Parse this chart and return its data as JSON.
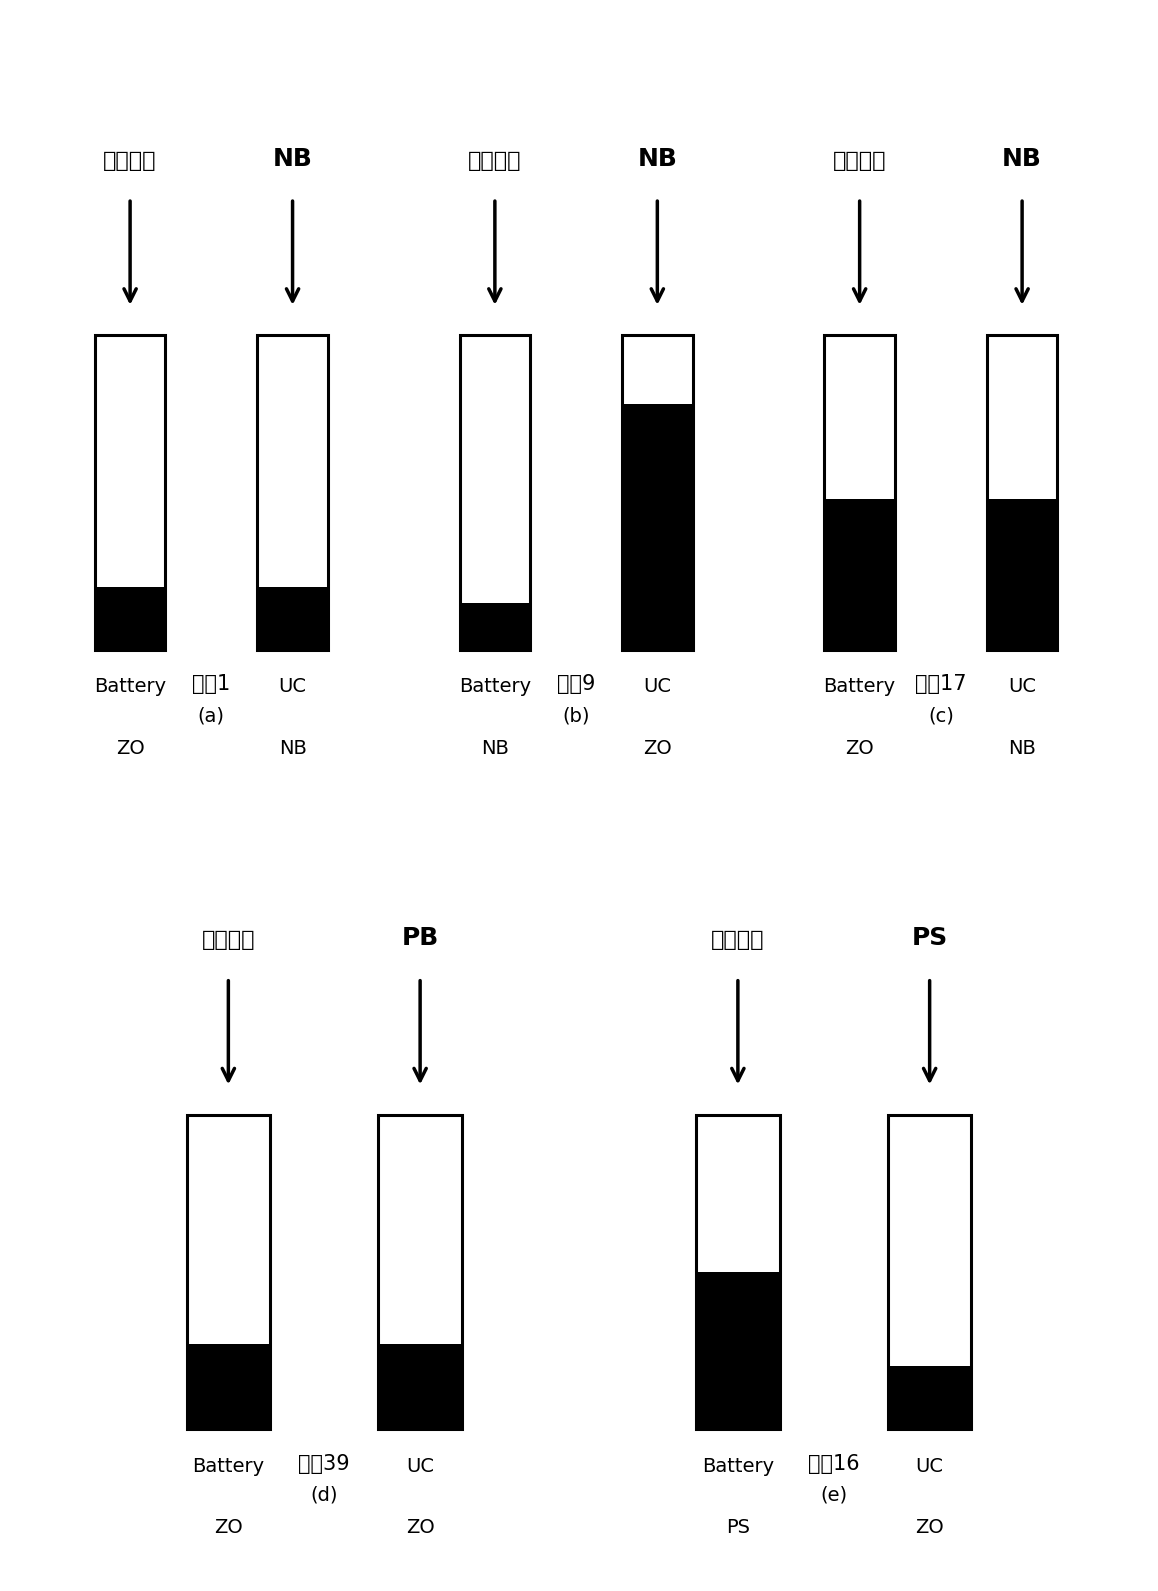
{
  "panels": [
    {
      "id": "a",
      "title_left": "功率需求",
      "title_right": "NB",
      "state_label": "状态1",
      "letter": "(a)",
      "bar1_fill": 0.2,
      "bar2_fill": 0.2,
      "bar1_label1": "Battery",
      "bar1_label2": "ZO",
      "bar2_label1": "UC",
      "bar2_label2": "NB"
    },
    {
      "id": "b",
      "title_left": "功率需求",
      "title_right": "NB",
      "state_label": "状态9",
      "letter": "(b)",
      "bar1_fill": 0.15,
      "bar2_fill": 0.78,
      "bar1_label1": "Battery",
      "bar1_label2": "NB",
      "bar2_label1": "UC",
      "bar2_label2": "ZO"
    },
    {
      "id": "c",
      "title_left": "功率需求",
      "title_right": "NB",
      "state_label": "状态17",
      "letter": "(c)",
      "bar1_fill": 0.48,
      "bar2_fill": 0.48,
      "bar1_label1": "Battery",
      "bar1_label2": "ZO",
      "bar2_label1": "UC",
      "bar2_label2": "NB"
    },
    {
      "id": "d",
      "title_left": "功率需求",
      "title_right": "PB",
      "state_label": "状态39",
      "letter": "(d)",
      "bar1_fill": 0.27,
      "bar2_fill": 0.27,
      "bar1_label1": "Battery",
      "bar1_label2": "ZO",
      "bar2_label1": "UC",
      "bar2_label2": "ZO"
    },
    {
      "id": "e",
      "title_left": "功率需求",
      "title_right": "PS",
      "state_label": "状态16",
      "letter": "(e)",
      "bar1_fill": 0.5,
      "bar2_fill": 0.2,
      "bar1_label1": "Battery",
      "bar1_label2": "PS",
      "bar2_label1": "UC",
      "bar2_label2": "ZO"
    }
  ],
  "fill_color": "#000000",
  "empty_color": "#ffffff",
  "border_color": "#000000",
  "font_size_chinese": 16,
  "font_size_label": 14,
  "font_size_state": 15,
  "font_size_letter": 14,
  "font_size_right": 18
}
